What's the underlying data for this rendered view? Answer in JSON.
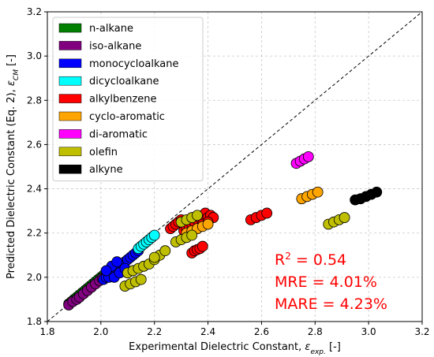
{
  "chart_data": {
    "type": "scatter",
    "title": "",
    "xlabel": {
      "base": "Experimental Dielectric Constant, ",
      "symbol": "ε",
      "sub": "exp.",
      "unit": " [-]"
    },
    "ylabel": {
      "base": "Predicted Dielectric Constant (Eq. 2), ",
      "symbol": "ε",
      "sub": "CM",
      "unit": " [-]"
    },
    "xlim": [
      1.8,
      3.2
    ],
    "ylim": [
      1.8,
      3.2
    ],
    "xticks": [
      "1.8",
      "2.0",
      "2.2",
      "2.4",
      "2.6",
      "2.8",
      "3.0",
      "3.2"
    ],
    "yticks": [
      "1.8",
      "2.0",
      "2.2",
      "2.4",
      "2.6",
      "2.8",
      "3.0",
      "3.2"
    ],
    "grid": true,
    "legend_position": "top-left",
    "reference_line": "y = x",
    "annotation": {
      "r2_prefix": "R",
      "r2_sup": "2",
      "r2_value": " = 0.54",
      "mre": "MRE = 4.01%",
      "mare": "MARE = 4.23%",
      "color": "#ff0000"
    },
    "series": [
      {
        "name": "n-alkane",
        "color": "#008000",
        "points": [
          [
            1.88,
            1.88
          ],
          [
            1.89,
            1.89
          ],
          [
            1.9,
            1.9
          ],
          [
            1.91,
            1.91
          ],
          [
            1.92,
            1.92
          ],
          [
            1.93,
            1.93
          ],
          [
            1.94,
            1.94
          ],
          [
            1.95,
            1.95
          ],
          [
            1.96,
            1.96
          ],
          [
            1.97,
            1.97
          ],
          [
            1.98,
            1.98
          ],
          [
            1.99,
            1.99
          ],
          [
            2.0,
            2.0
          ],
          [
            2.01,
            2.01
          ],
          [
            2.02,
            2.02
          ],
          [
            2.03,
            2.03
          ],
          [
            2.04,
            2.04
          ],
          [
            2.05,
            2.05
          ]
        ]
      },
      {
        "name": "iso-alkane",
        "color": "#800080",
        "points": [
          [
            1.88,
            1.875
          ],
          [
            1.895,
            1.89
          ],
          [
            1.91,
            1.9
          ],
          [
            1.92,
            1.91
          ],
          [
            1.935,
            1.925
          ],
          [
            1.95,
            1.94
          ],
          [
            1.965,
            1.955
          ],
          [
            1.98,
            1.97
          ],
          [
            1.995,
            1.985
          ],
          [
            2.005,
            1.995
          ],
          [
            2.02,
            2.01
          ],
          [
            2.035,
            2.02
          ],
          [
            2.05,
            2.035
          ],
          [
            2.065,
            2.05
          ]
        ]
      },
      {
        "name": "monocycloalkane",
        "color": "#0000ff",
        "points": [
          [
            2.01,
            1.99
          ],
          [
            2.02,
            2.0
          ],
          [
            2.03,
            2.01
          ],
          [
            2.04,
            2.02
          ],
          [
            2.05,
            2.03
          ],
          [
            2.06,
            2.04
          ],
          [
            2.07,
            2.05
          ],
          [
            2.08,
            2.06
          ],
          [
            2.09,
            2.07
          ],
          [
            2.1,
            2.08
          ],
          [
            2.11,
            2.09
          ],
          [
            2.12,
            2.1
          ],
          [
            2.13,
            2.11
          ],
          [
            2.14,
            2.12
          ],
          [
            2.03,
            2.0
          ],
          [
            2.05,
            2.0
          ],
          [
            2.07,
            2.02
          ],
          [
            2.09,
            2.04
          ],
          [
            2.04,
            2.05
          ],
          [
            2.06,
            2.07
          ],
          [
            2.02,
            2.03
          ]
        ]
      },
      {
        "name": "dicycloalkane",
        "color": "#00ffff",
        "points": [
          [
            2.14,
            2.13
          ],
          [
            2.15,
            2.14
          ],
          [
            2.16,
            2.15
          ],
          [
            2.17,
            2.16
          ],
          [
            2.18,
            2.17
          ],
          [
            2.19,
            2.18
          ],
          [
            2.2,
            2.19
          ]
        ]
      },
      {
        "name": "alkylbenzene",
        "color": "#ff0000",
        "points": [
          [
            2.26,
            2.22
          ],
          [
            2.27,
            2.23
          ],
          [
            2.28,
            2.24
          ],
          [
            2.29,
            2.25
          ],
          [
            2.3,
            2.26
          ],
          [
            2.31,
            2.21
          ],
          [
            2.32,
            2.22
          ],
          [
            2.33,
            2.23
          ],
          [
            2.34,
            2.24
          ],
          [
            2.35,
            2.25
          ],
          [
            2.36,
            2.26
          ],
          [
            2.37,
            2.27
          ],
          [
            2.38,
            2.28
          ],
          [
            2.39,
            2.29
          ],
          [
            2.4,
            2.27
          ],
          [
            2.41,
            2.28
          ],
          [
            2.42,
            2.27
          ],
          [
            2.36,
            2.22
          ],
          [
            2.38,
            2.24
          ],
          [
            2.4,
            2.25
          ],
          [
            2.34,
            2.11
          ],
          [
            2.35,
            2.12
          ],
          [
            2.36,
            2.125
          ],
          [
            2.37,
            2.13
          ],
          [
            2.38,
            2.14
          ],
          [
            2.56,
            2.26
          ],
          [
            2.58,
            2.27
          ],
          [
            2.6,
            2.28
          ],
          [
            2.62,
            2.29
          ]
        ]
      },
      {
        "name": "cyclo-aromatic",
        "color": "#ffa500",
        "points": [
          [
            2.32,
            2.2
          ],
          [
            2.34,
            2.21
          ],
          [
            2.36,
            2.22
          ],
          [
            2.38,
            2.23
          ],
          [
            2.4,
            2.24
          ],
          [
            2.75,
            2.355
          ],
          [
            2.77,
            2.365
          ],
          [
            2.79,
            2.375
          ],
          [
            2.81,
            2.385
          ]
        ]
      },
      {
        "name": "di-aromatic",
        "color": "#ff00ff",
        "points": [
          [
            2.73,
            2.515
          ],
          [
            2.745,
            2.525
          ],
          [
            2.76,
            2.535
          ],
          [
            2.775,
            2.545
          ]
        ]
      },
      {
        "name": "olefin",
        "color": "#bfbf00",
        "points": [
          [
            2.09,
            1.96
          ],
          [
            2.11,
            1.97
          ],
          [
            2.13,
            1.98
          ],
          [
            2.15,
            1.99
          ],
          [
            2.1,
            2.02
          ],
          [
            2.12,
            2.03
          ],
          [
            2.14,
            2.04
          ],
          [
            2.16,
            2.05
          ],
          [
            2.18,
            2.06
          ],
          [
            2.2,
            2.08
          ],
          [
            2.22,
            2.1
          ],
          [
            2.24,
            2.12
          ],
          [
            2.2,
            2.09
          ],
          [
            2.28,
            2.16
          ],
          [
            2.3,
            2.17
          ],
          [
            2.32,
            2.18
          ],
          [
            2.34,
            2.19
          ],
          [
            2.3,
            2.25
          ],
          [
            2.32,
            2.26
          ],
          [
            2.34,
            2.27
          ],
          [
            2.36,
            2.28
          ],
          [
            2.85,
            2.24
          ],
          [
            2.87,
            2.25
          ],
          [
            2.89,
            2.26
          ],
          [
            2.91,
            2.27
          ]
        ]
      },
      {
        "name": "alkyne",
        "color": "#000000",
        "points": [
          [
            2.95,
            2.35
          ],
          [
            2.97,
            2.355
          ],
          [
            2.99,
            2.365
          ],
          [
            3.01,
            2.375
          ],
          [
            3.03,
            2.385
          ]
        ]
      }
    ]
  }
}
